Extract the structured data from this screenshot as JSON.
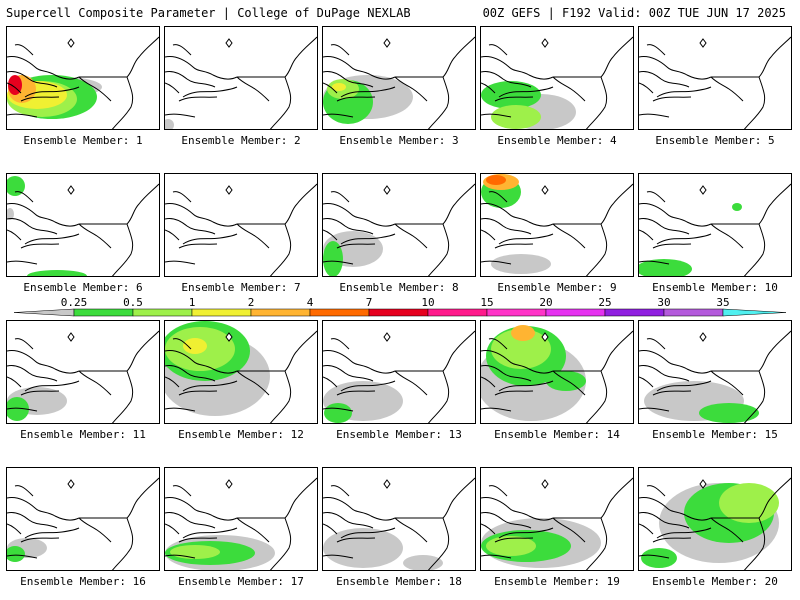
{
  "header": {
    "title": "Supercell Composite Parameter | College of DuPage NEXLAB",
    "run_info": "00Z GEFS | F192 Valid: 00Z TUE JUN 17 2025"
  },
  "colorbar": {
    "ticks": [
      "0.25",
      "0.5",
      "1",
      "2",
      "4",
      "7",
      "10",
      "15",
      "20",
      "25",
      "30",
      "35"
    ],
    "colors": [
      "#c8c8c8",
      "#3cdc3c",
      "#9ef04a",
      "#f0f032",
      "#ffb432",
      "#ff6a00",
      "#e6001e",
      "#ff1a8c",
      "#ff34c8",
      "#e632f0",
      "#9020e0",
      "#b45adc",
      "#50f0f0"
    ]
  },
  "panels": [
    {
      "caption": "Ensemble Member: 1",
      "blobs": [
        {
          "c": "#c8c8c8",
          "x": 55,
          "y": 60,
          "rx": 40,
          "ry": 10
        },
        {
          "c": "#3cdc3c",
          "x": 45,
          "y": 70,
          "rx": 45,
          "ry": 22
        },
        {
          "c": "#9ef04a",
          "x": 35,
          "y": 72,
          "rx": 35,
          "ry": 18
        },
        {
          "c": "#f0f032",
          "x": 30,
          "y": 68,
          "rx": 30,
          "ry": 14
        },
        {
          "c": "#ffb432",
          "x": 15,
          "y": 62,
          "rx": 14,
          "ry": 14
        },
        {
          "c": "#e6001e",
          "x": 8,
          "y": 58,
          "rx": 7,
          "ry": 10
        }
      ]
    },
    {
      "caption": "Ensemble Member: 2",
      "blobs": [
        {
          "c": "#c8c8c8",
          "x": 3,
          "y": 98,
          "rx": 6,
          "ry": 6
        }
      ]
    },
    {
      "caption": "Ensemble Member: 3",
      "blobs": [
        {
          "c": "#c8c8c8",
          "x": 45,
          "y": 70,
          "rx": 45,
          "ry": 22
        },
        {
          "c": "#3cdc3c",
          "x": 25,
          "y": 75,
          "rx": 25,
          "ry": 22
        },
        {
          "c": "#9ef04a",
          "x": 20,
          "y": 62,
          "rx": 16,
          "ry": 10
        },
        {
          "c": "#f0f032",
          "x": 16,
          "y": 60,
          "rx": 7,
          "ry": 4
        }
      ]
    },
    {
      "caption": "Ensemble Member: 4",
      "blobs": [
        {
          "c": "#c8c8c8",
          "x": 60,
          "y": 85,
          "rx": 35,
          "ry": 18
        },
        {
          "c": "#3cdc3c",
          "x": 30,
          "y": 68,
          "rx": 30,
          "ry": 14
        },
        {
          "c": "#9ef04a",
          "x": 35,
          "y": 90,
          "rx": 25,
          "ry": 12
        }
      ]
    },
    {
      "caption": "Ensemble Member: 5",
      "blobs": []
    },
    {
      "caption": "Ensemble Member: 6",
      "blobs": [
        {
          "c": "#3cdc3c",
          "x": 8,
          "y": 12,
          "rx": 10,
          "ry": 10
        },
        {
          "c": "#3cdc3c",
          "x": 50,
          "y": 102,
          "rx": 30,
          "ry": 6
        },
        {
          "c": "#c8c8c8",
          "x": 3,
          "y": 40,
          "rx": 4,
          "ry": 6
        }
      ]
    },
    {
      "caption": "Ensemble Member: 7",
      "blobs": []
    },
    {
      "caption": "Ensemble Member: 8",
      "blobs": [
        {
          "c": "#c8c8c8",
          "x": 30,
          "y": 75,
          "rx": 30,
          "ry": 18
        },
        {
          "c": "#3cdc3c",
          "x": 10,
          "y": 85,
          "rx": 10,
          "ry": 18
        }
      ]
    },
    {
      "caption": "Ensemble Member: 9",
      "blobs": [
        {
          "c": "#3cdc3c",
          "x": 20,
          "y": 18,
          "rx": 20,
          "ry": 16
        },
        {
          "c": "#ffb432",
          "x": 20,
          "y": 8,
          "rx": 18,
          "ry": 8
        },
        {
          "c": "#ff6a00",
          "x": 15,
          "y": 6,
          "rx": 10,
          "ry": 5
        },
        {
          "c": "#c8c8c8",
          "x": 40,
          "y": 90,
          "rx": 30,
          "ry": 10
        }
      ]
    },
    {
      "caption": "Ensemble Member: 10",
      "blobs": [
        {
          "c": "#3cdc3c",
          "x": 25,
          "y": 95,
          "rx": 28,
          "ry": 10
        },
        {
          "c": "#3cdc3c",
          "x": 98,
          "y": 33,
          "rx": 5,
          "ry": 4
        }
      ]
    },
    {
      "caption": "Ensemble Member: 11",
      "blobs": [
        {
          "c": "#c8c8c8",
          "x": 30,
          "y": 80,
          "rx": 30,
          "ry": 14
        },
        {
          "c": "#3cdc3c",
          "x": 10,
          "y": 88,
          "rx": 12,
          "ry": 12
        }
      ]
    },
    {
      "caption": "Ensemble Member: 12",
      "blobs": [
        {
          "c": "#c8c8c8",
          "x": 50,
          "y": 55,
          "rx": 55,
          "ry": 40
        },
        {
          "c": "#3cdc3c",
          "x": 40,
          "y": 30,
          "rx": 45,
          "ry": 30
        },
        {
          "c": "#9ef04a",
          "x": 35,
          "y": 28,
          "rx": 35,
          "ry": 22
        },
        {
          "c": "#f0f032",
          "x": 30,
          "y": 25,
          "rx": 12,
          "ry": 8
        }
      ]
    },
    {
      "caption": "Ensemble Member: 13",
      "blobs": [
        {
          "c": "#c8c8c8",
          "x": 40,
          "y": 80,
          "rx": 40,
          "ry": 20
        },
        {
          "c": "#3cdc3c",
          "x": 15,
          "y": 92,
          "rx": 14,
          "ry": 10
        }
      ]
    },
    {
      "caption": "Ensemble Member: 14",
      "blobs": [
        {
          "c": "#c8c8c8",
          "x": 50,
          "y": 60,
          "rx": 55,
          "ry": 40
        },
        {
          "c": "#3cdc3c",
          "x": 45,
          "y": 35,
          "rx": 40,
          "ry": 30
        },
        {
          "c": "#9ef04a",
          "x": 40,
          "y": 28,
          "rx": 30,
          "ry": 20
        },
        {
          "c": "#ffb432",
          "x": 42,
          "y": 12,
          "rx": 12,
          "ry": 8
        },
        {
          "c": "#3cdc3c",
          "x": 85,
          "y": 60,
          "rx": 20,
          "ry": 10
        }
      ]
    },
    {
      "caption": "Ensemble Member: 15",
      "blobs": [
        {
          "c": "#c8c8c8",
          "x": 55,
          "y": 80,
          "rx": 50,
          "ry": 20
        },
        {
          "c": "#3cdc3c",
          "x": 90,
          "y": 92,
          "rx": 30,
          "ry": 10
        }
      ]
    },
    {
      "caption": "Ensemble Member: 16",
      "blobs": [
        {
          "c": "#c8c8c8",
          "x": 20,
          "y": 80,
          "rx": 20,
          "ry": 10
        },
        {
          "c": "#3cdc3c",
          "x": 8,
          "y": 86,
          "rx": 10,
          "ry": 8
        }
      ]
    },
    {
      "caption": "Ensemble Member: 17",
      "blobs": [
        {
          "c": "#c8c8c8",
          "x": 55,
          "y": 85,
          "rx": 55,
          "ry": 18
        },
        {
          "c": "#3cdc3c",
          "x": 45,
          "y": 85,
          "rx": 45,
          "ry": 12
        },
        {
          "c": "#9ef04a",
          "x": 30,
          "y": 84,
          "rx": 25,
          "ry": 7
        }
      ]
    },
    {
      "caption": "Ensemble Member: 18",
      "blobs": [
        {
          "c": "#c8c8c8",
          "x": 40,
          "y": 80,
          "rx": 40,
          "ry": 20
        },
        {
          "c": "#c8c8c8",
          "x": 100,
          "y": 95,
          "rx": 20,
          "ry": 8
        }
      ]
    },
    {
      "caption": "Ensemble Member: 19",
      "blobs": [
        {
          "c": "#c8c8c8",
          "x": 60,
          "y": 75,
          "rx": 60,
          "ry": 25
        },
        {
          "c": "#3cdc3c",
          "x": 45,
          "y": 78,
          "rx": 45,
          "ry": 16
        },
        {
          "c": "#9ef04a",
          "x": 30,
          "y": 78,
          "rx": 25,
          "ry": 10
        }
      ]
    },
    {
      "caption": "Ensemble Member: 20",
      "blobs": [
        {
          "c": "#c8c8c8",
          "x": 80,
          "y": 55,
          "rx": 60,
          "ry": 40
        },
        {
          "c": "#3cdc3c",
          "x": 90,
          "y": 45,
          "rx": 45,
          "ry": 30
        },
        {
          "c": "#9ef04a",
          "x": 110,
          "y": 35,
          "rx": 30,
          "ry": 20
        },
        {
          "c": "#3cdc3c",
          "x": 20,
          "y": 90,
          "rx": 18,
          "ry": 10
        }
      ]
    }
  ]
}
